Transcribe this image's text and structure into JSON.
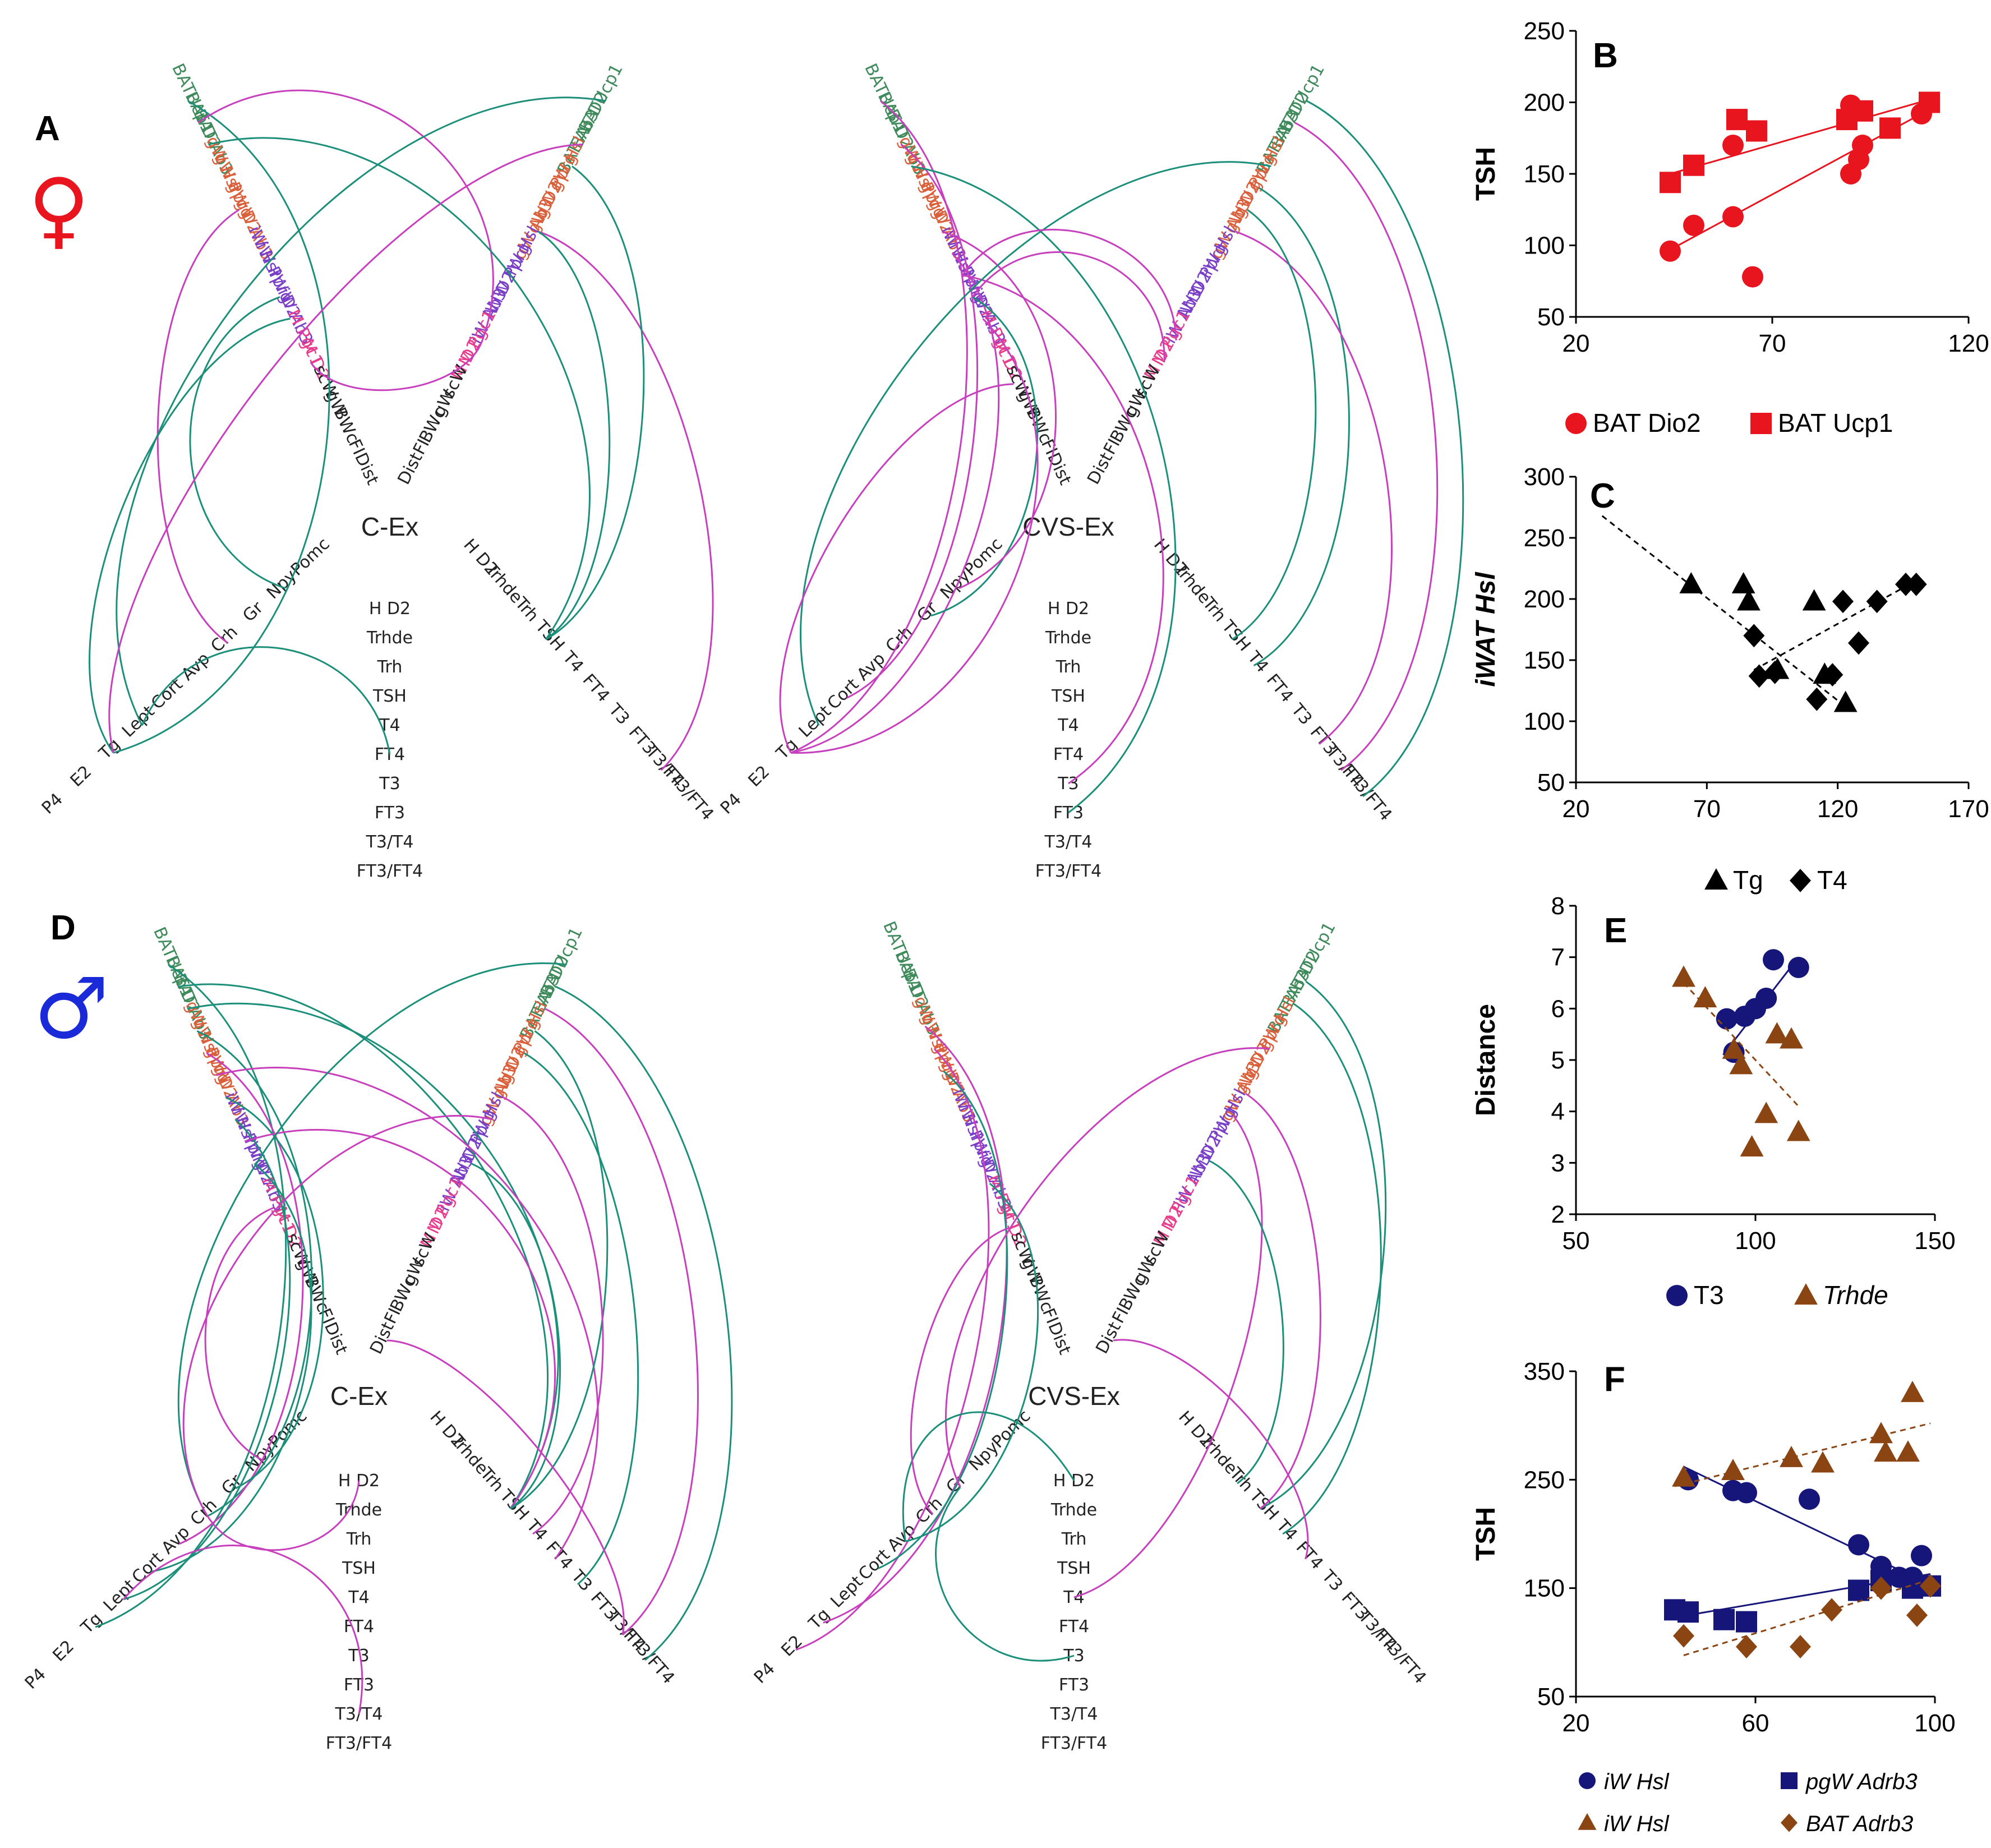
{
  "colors": {
    "green_link": "#1b8f7a",
    "magenta_link": "#c83fbe",
    "bat_green": "#3e8a5a",
    "gw_orange": "#d9603b",
    "iw_purple": "#7a3fc7",
    "m_pink": "#e83c8c",
    "dark": "#222222",
    "red": "#e8141e",
    "navy": "#15157a",
    "brown": "#8b4513"
  },
  "panels": {
    "A": "A",
    "B": "B",
    "C": "C",
    "D": "D",
    "E": "E",
    "F": "F",
    "female_symbol": "♀",
    "male_symbol": "♂"
  },
  "labels": {
    "upper_left": [
      "BATUcp1",
      "BAT D2",
      "BAT Ab3",
      "gW Hsl",
      "gW Pprg",
      "gW D2",
      "gW Ab3",
      "iW Hsl",
      "iW Pprg",
      "iW D2",
      "iW Ab3",
      "M Pgc1",
      "M D2",
      "scW",
      "gW",
      "BWc",
      "FI",
      "Dist"
    ],
    "upper_right": [
      "BATUcp1",
      "BAT D2",
      "BAT Ab3",
      "gW Hsl",
      "gW Pprg",
      "gW D2",
      "gW Ab3",
      "iW Hsl",
      "iW Pprg",
      "iW D2",
      "iW Ab3",
      "M Pgc1",
      "M D2",
      "scW",
      "gW",
      "BWc",
      "FI",
      "Dist"
    ],
    "lower_left": [
      "Pomc",
      "Npy",
      "Gr",
      "Crh",
      "Avp",
      "Cort",
      "Lept",
      "Tg",
      "E2",
      "P4"
    ],
    "lower_right": [
      "H D2",
      "Trhde",
      "Trh",
      "TSH",
      "T4",
      "FT4",
      "T3",
      "FT3",
      "T3/T4",
      "FT3/FT4"
    ],
    "center_stack": [
      "H D2",
      "Trhde",
      "Trh",
      "TSH",
      "T4",
      "FT4",
      "T3",
      "FT3",
      "T3/T4",
      "FT3/FT4"
    ]
  },
  "diagram_titles": {
    "a_left": "C-Ex",
    "a_right": "CVS-Ex",
    "d_left": "C-Ex",
    "d_right": "CVS-Ex"
  },
  "chart_data": [
    {
      "id": "B",
      "type": "scatter",
      "ylabel": "TSH",
      "xlabel": "",
      "xlim": [
        20,
        120
      ],
      "ylim": [
        50,
        250
      ],
      "xticks": [
        20,
        70,
        120
      ],
      "yticks": [
        50,
        100,
        150,
        200,
        250
      ],
      "series": [
        {
          "name": "BAT Dio2",
          "marker": "circle",
          "color": "#e8141e",
          "points": [
            [
              44,
              96
            ],
            [
              50,
              114
            ],
            [
              60,
              120
            ],
            [
              60,
              170
            ],
            [
              65,
              78
            ],
            [
              90,
              150
            ],
            [
              90,
              198
            ],
            [
              92,
              160
            ],
            [
              93,
              170
            ],
            [
              108,
              192
            ]
          ],
          "trend": [
            [
              44,
              97
            ],
            [
              110,
              195
            ]
          ],
          "trend_style": "solid"
        },
        {
          "name": "BAT Ucp1",
          "marker": "square",
          "color": "#e8141e",
          "points": [
            [
              44,
              144
            ],
            [
              50,
              156
            ],
            [
              61,
              188
            ],
            [
              66,
              180
            ],
            [
              89,
              188
            ],
            [
              93,
              194
            ],
            [
              100,
              182
            ],
            [
              110,
              200
            ]
          ],
          "trend": [
            [
              44,
              150
            ],
            [
              110,
              202
            ]
          ],
          "trend_style": "solid"
        }
      ]
    },
    {
      "id": "C",
      "type": "scatter",
      "ylabel": "iWAT Hsl",
      "xlabel": "",
      "xlim": [
        20,
        170
      ],
      "ylim": [
        50,
        300
      ],
      "xticks": [
        20,
        70,
        120,
        170
      ],
      "yticks": [
        50,
        100,
        150,
        200,
        250,
        300
      ],
      "series": [
        {
          "name": "Tg",
          "marker": "triangle",
          "color": "#000000",
          "points": [
            [
              64,
              212
            ],
            [
              84,
              212
            ],
            [
              86,
              198
            ],
            [
              97,
              142
            ],
            [
              111,
              198
            ],
            [
              115,
              138
            ],
            [
              123,
              115
            ]
          ],
          "trend": [
            [
              30,
              268
            ],
            [
              123,
              112
            ]
          ],
          "trend_style": "dashed"
        },
        {
          "name": "T4",
          "marker": "diamond",
          "color": "#000000",
          "points": [
            [
              88,
              170
            ],
            [
              90,
              137
            ],
            [
              96,
              140
            ],
            [
              112,
              118
            ],
            [
              118,
              138
            ],
            [
              122,
              198
            ],
            [
              128,
              164
            ],
            [
              135,
              198
            ],
            [
              146,
              212
            ],
            [
              150,
              212
            ]
          ],
          "trend": [
            [
              88,
              142
            ],
            [
              150,
              215
            ]
          ],
          "trend_style": "dashed"
        }
      ]
    },
    {
      "id": "E",
      "type": "scatter",
      "ylabel": "Distance",
      "xlabel": "",
      "xlim": [
        50,
        150
      ],
      "ylim": [
        2,
        8
      ],
      "xticks": [
        50,
        100,
        150
      ],
      "yticks": [
        2,
        3,
        4,
        5,
        6,
        7,
        8
      ],
      "series": [
        {
          "name": "T3",
          "marker": "circle",
          "color": "#15157a",
          "points": [
            [
              92,
              5.8
            ],
            [
              94,
              5.15
            ],
            [
              97,
              5.85
            ],
            [
              100,
              6.0
            ],
            [
              103,
              6.2
            ],
            [
              105,
              6.95
            ],
            [
              112,
              6.8
            ]
          ],
          "trend": [
            [
              91,
              5.1
            ],
            [
              112,
              7.0
            ]
          ],
          "trend_style": "solid"
        },
        {
          "name": "Trhde",
          "marker": "triangle",
          "color": "#8b4513",
          "points": [
            [
              80,
              6.6
            ],
            [
              86,
              6.2
            ],
            [
              94,
              5.2
            ],
            [
              96,
              4.9
            ],
            [
              99,
              3.3
            ],
            [
              103,
              3.95
            ],
            [
              106,
              5.5
            ],
            [
              110,
              5.4
            ],
            [
              112,
              3.6
            ]
          ],
          "trend": [
            [
              80,
              6.5
            ],
            [
              112,
              4.1
            ]
          ],
          "trend_style": "dashed"
        }
      ]
    },
    {
      "id": "F",
      "type": "scatter",
      "ylabel": "TSH",
      "xlabel": "",
      "xlim": [
        20,
        100
      ],
      "ylim": [
        50,
        350
      ],
      "xticks": [
        20,
        60,
        100
      ],
      "yticks": [
        50,
        150,
        250,
        350
      ],
      "series": [
        {
          "name": "iW Hsl",
          "marker": "circle",
          "color": "#15157a",
          "points": [
            [
              45,
              250
            ],
            [
              55,
              240
            ],
            [
              58,
              238
            ],
            [
              72,
              232
            ],
            [
              83,
              190
            ],
            [
              88,
              170
            ],
            [
              92,
              160
            ],
            [
              95,
              160
            ],
            [
              97,
              180
            ]
          ],
          "trend": [
            [
              44,
              262
            ],
            [
              98,
              155
            ]
          ],
          "trend_style": "solid"
        },
        {
          "name": "pgW Adrb3",
          "marker": "square",
          "color": "#15157a",
          "points": [
            [
              42,
              130
            ],
            [
              45,
              128
            ],
            [
              53,
              121
            ],
            [
              58,
              119
            ],
            [
              83,
              148
            ],
            [
              88,
              157
            ],
            [
              95,
              150
            ],
            [
              99,
              152
            ]
          ],
          "trend": [
            [
              42,
              123
            ],
            [
              99,
              163
            ]
          ],
          "trend_style": "solid"
        },
        {
          "name": "iW Hsl",
          "marker": "triangle",
          "color": "#8b4513",
          "points": [
            [
              44,
              252
            ],
            [
              55,
              258
            ],
            [
              68,
              270
            ],
            [
              75,
              265
            ],
            [
              88,
              292
            ],
            [
              89,
              275
            ],
            [
              94,
              275
            ],
            [
              95,
              330
            ]
          ],
          "trend": [
            [
              42,
              244
            ],
            [
              99,
              302
            ]
          ],
          "trend_style": "dashed"
        },
        {
          "name": "BAT Adrb3",
          "marker": "diamond",
          "color": "#8b4513",
          "points": [
            [
              44,
              106
            ],
            [
              58,
              96
            ],
            [
              70,
              96
            ],
            [
              77,
              130
            ],
            [
              88,
              150
            ],
            [
              96,
              125
            ],
            [
              99,
              152
            ]
          ],
          "trend": [
            [
              44,
              88
            ],
            [
              99,
              158
            ]
          ],
          "trend_style": "dashed"
        }
      ]
    }
  ]
}
